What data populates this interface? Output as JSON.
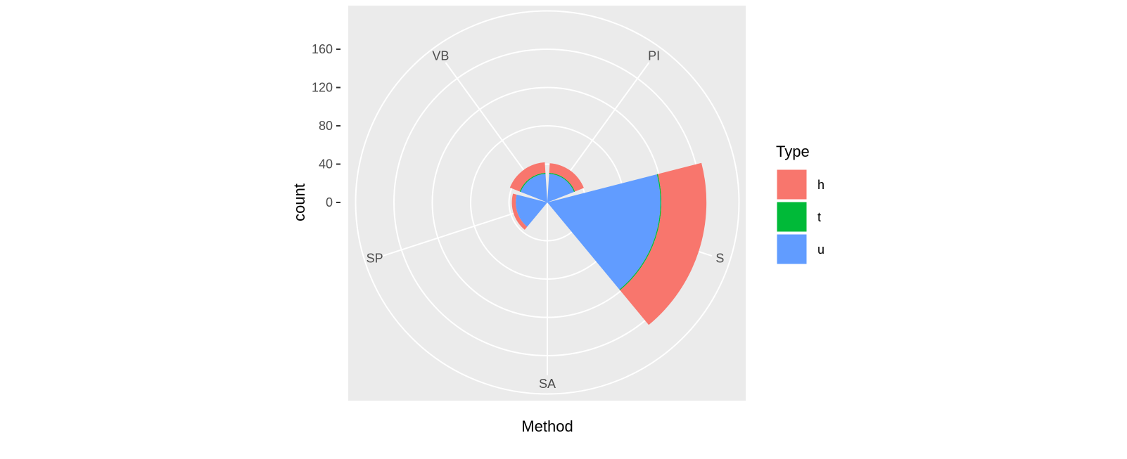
{
  "chart_data": {
    "type": "bar",
    "coord": "polar",
    "title": "",
    "xlabel": "Method",
    "ylabel": "count",
    "categories": [
      "PI",
      "S",
      "SA",
      "SP",
      "VB"
    ],
    "series": [
      {
        "name": "h",
        "color": "#F8766D",
        "values": [
          10,
          47,
          0,
          4,
          11
        ]
      },
      {
        "name": "t",
        "color": "#00BA38",
        "values": [
          1,
          1,
          0,
          0,
          1
        ]
      },
      {
        "name": "u",
        "color": "#619CFF",
        "values": [
          30,
          118,
          0,
          33,
          30
        ]
      }
    ],
    "yticks": [
      0,
      40,
      80,
      120,
      160
    ],
    "ylim": [
      0,
      200
    ],
    "legend": {
      "title": "Type",
      "position": "right",
      "entries": [
        "h",
        "t",
        "u"
      ]
    }
  }
}
